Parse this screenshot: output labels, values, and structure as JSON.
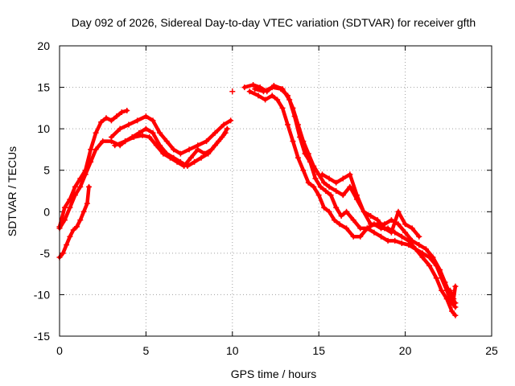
{
  "chart_data": {
    "type": "scatter",
    "title": "Day 092 of 2026, Sidereal Day-to-day VTEC variation (SDTVAR) for receiver gfth",
    "xlabel": "GPS time / hours",
    "ylabel": "SDTVAR / TECUs",
    "xlim": [
      0,
      25
    ],
    "ylim": [
      -15,
      20
    ],
    "xticks": [
      0,
      5,
      10,
      15,
      20,
      25
    ],
    "yticks": [
      -15,
      -10,
      -5,
      0,
      5,
      10,
      15,
      20
    ],
    "xtick_labels": [
      "0",
      "5",
      "10",
      "15",
      "20",
      "25"
    ],
    "ytick_labels": [
      "-15",
      "-10",
      "-5",
      "0",
      "5",
      "10",
      "15",
      "20"
    ],
    "grid": true,
    "marker": "+",
    "color": "#ff0000",
    "series": [
      {
        "name": "track-a",
        "points": [
          [
            0.0,
            -1.8
          ],
          [
            0.3,
            0.5
          ],
          [
            0.6,
            1.5
          ],
          [
            0.9,
            3.0
          ],
          [
            1.2,
            4.0
          ],
          [
            1.5,
            5.0
          ],
          [
            1.8,
            7.5
          ],
          [
            2.1,
            9.5
          ],
          [
            2.4,
            10.8
          ],
          [
            2.7,
            11.3
          ],
          [
            3.0,
            11.0
          ],
          [
            3.3,
            11.5
          ],
          [
            3.6,
            12.0
          ],
          [
            3.9,
            12.2
          ]
        ]
      },
      {
        "name": "track-b",
        "points": [
          [
            0.0,
            -2.0
          ],
          [
            0.3,
            -1.0
          ],
          [
            0.6,
            0.5
          ],
          [
            0.9,
            2.0
          ],
          [
            1.2,
            3.0
          ],
          [
            1.5,
            4.5
          ],
          [
            1.8,
            6.0
          ],
          [
            2.1,
            7.5
          ],
          [
            2.5,
            8.5
          ],
          [
            3.0,
            8.5
          ],
          [
            3.5,
            8.0
          ],
          [
            3.8,
            8.5
          ],
          [
            4.2,
            9.0
          ],
          [
            4.6,
            9.5
          ],
          [
            5.0,
            10.0
          ],
          [
            5.4,
            9.5
          ],
          [
            5.8,
            8.0
          ],
          [
            6.2,
            7.0
          ],
          [
            6.6,
            6.5
          ],
          [
            7.0,
            6.0
          ],
          [
            7.4,
            5.5
          ],
          [
            7.8,
            6.0
          ],
          [
            8.2,
            6.5
          ],
          [
            8.6,
            7.0
          ],
          [
            9.0,
            8.0
          ],
          [
            9.4,
            9.0
          ],
          [
            9.7,
            10.0
          ]
        ]
      },
      {
        "name": "track-c",
        "points": [
          [
            0.0,
            -5.5
          ],
          [
            0.2,
            -5.0
          ],
          [
            0.4,
            -4.0
          ],
          [
            0.6,
            -3.0
          ],
          [
            0.8,
            -2.2
          ],
          [
            1.0,
            -1.8
          ],
          [
            1.2,
            -1.0
          ],
          [
            1.4,
            0.0
          ],
          [
            1.6,
            1.0
          ],
          [
            1.7,
            3.0
          ]
        ]
      },
      {
        "name": "track-d",
        "points": [
          [
            3.0,
            9.0
          ],
          [
            3.5,
            10.0
          ],
          [
            4.0,
            10.5
          ],
          [
            4.5,
            11.0
          ],
          [
            5.0,
            11.5
          ],
          [
            5.4,
            11.0
          ],
          [
            5.8,
            9.5
          ],
          [
            6.2,
            8.5
          ],
          [
            6.6,
            7.5
          ],
          [
            7.0,
            7.0
          ],
          [
            7.5,
            7.5
          ],
          [
            8.0,
            8.0
          ],
          [
            8.5,
            8.5
          ],
          [
            9.0,
            9.5
          ],
          [
            9.5,
            10.5
          ],
          [
            9.9,
            11.0
          ]
        ]
      },
      {
        "name": "track-e",
        "points": [
          [
            3.2,
            8.0
          ],
          [
            3.8,
            8.5
          ],
          [
            4.3,
            9.0
          ],
          [
            4.8,
            9.2
          ],
          [
            5.2,
            9.0
          ],
          [
            5.6,
            8.0
          ],
          [
            6.0,
            7.0
          ],
          [
            6.4,
            6.5
          ],
          [
            6.8,
            6.0
          ],
          [
            7.2,
            5.5
          ],
          [
            7.6,
            6.5
          ],
          [
            8.0,
            7.5
          ],
          [
            8.4,
            7.0
          ],
          [
            8.8,
            7.5
          ],
          [
            9.2,
            8.5
          ],
          [
            9.6,
            9.5
          ]
        ]
      },
      {
        "name": "point-10",
        "points": [
          [
            10.0,
            14.5
          ]
        ]
      },
      {
        "name": "track-f",
        "points": [
          [
            10.7,
            15.0
          ],
          [
            11.2,
            15.3
          ],
          [
            11.6,
            15.0
          ],
          [
            12.0,
            14.5
          ],
          [
            12.4,
            15.2
          ],
          [
            12.9,
            14.8
          ],
          [
            13.3,
            13.5
          ],
          [
            13.6,
            11.5
          ],
          [
            13.9,
            9.0
          ],
          [
            14.2,
            7.0
          ],
          [
            14.5,
            6.0
          ],
          [
            14.8,
            4.0
          ],
          [
            15.1,
            3.0
          ],
          [
            15.4,
            2.5
          ],
          [
            15.7,
            2.0
          ],
          [
            16.0,
            0.5
          ],
          [
            16.3,
            -0.5
          ],
          [
            16.6,
            0.0
          ],
          [
            17.0,
            -1.0
          ],
          [
            17.4,
            -2.0
          ],
          [
            17.8,
            -2.0
          ],
          [
            18.2,
            -1.5
          ],
          [
            18.6,
            -2.0
          ],
          [
            19.0,
            -2.0
          ],
          [
            19.4,
            -2.5
          ],
          [
            19.8,
            -3.0
          ],
          [
            20.2,
            -3.5
          ],
          [
            20.6,
            -4.5
          ],
          [
            21.0,
            -5.0
          ],
          [
            21.4,
            -5.5
          ],
          [
            21.8,
            -6.5
          ],
          [
            22.1,
            -8.0
          ],
          [
            22.4,
            -9.5
          ],
          [
            22.7,
            -11.0
          ],
          [
            22.9,
            -11.5
          ]
        ]
      },
      {
        "name": "track-g",
        "points": [
          [
            11.0,
            14.5
          ],
          [
            11.5,
            14.0
          ],
          [
            11.9,
            13.5
          ],
          [
            12.3,
            14.0
          ],
          [
            12.6,
            13.5
          ],
          [
            12.9,
            12.5
          ],
          [
            13.2,
            10.5
          ],
          [
            13.5,
            8.5
          ],
          [
            13.8,
            6.5
          ],
          [
            14.1,
            5.0
          ],
          [
            14.4,
            3.5
          ],
          [
            14.7,
            3.0
          ],
          [
            15.0,
            2.0
          ],
          [
            15.3,
            0.5
          ],
          [
            15.6,
            0.0
          ],
          [
            15.9,
            -1.0
          ],
          [
            16.2,
            -1.5
          ],
          [
            16.6,
            -2.0
          ],
          [
            17.0,
            -3.0
          ],
          [
            17.4,
            -3.0
          ],
          [
            17.8,
            -2.0
          ],
          [
            18.2,
            -2.5
          ],
          [
            18.6,
            -3.0
          ],
          [
            19.0,
            -3.5
          ],
          [
            19.4,
            -3.5
          ],
          [
            19.8,
            -3.8
          ],
          [
            20.2,
            -4.0
          ],
          [
            20.6,
            -4.5
          ],
          [
            21.0,
            -5.5
          ],
          [
            21.4,
            -6.5
          ],
          [
            21.8,
            -8.0
          ],
          [
            22.1,
            -9.5
          ],
          [
            22.4,
            -10.5
          ],
          [
            22.7,
            -12.0
          ],
          [
            22.9,
            -12.5
          ]
        ]
      },
      {
        "name": "track-h",
        "points": [
          [
            11.3,
            14.8
          ],
          [
            11.8,
            14.5
          ],
          [
            12.3,
            15.0
          ],
          [
            12.8,
            14.8
          ],
          [
            13.2,
            14.0
          ],
          [
            13.5,
            12.5
          ],
          [
            13.8,
            10.5
          ],
          [
            14.1,
            8.5
          ],
          [
            14.4,
            7.0
          ],
          [
            14.7,
            5.5
          ],
          [
            15.0,
            4.5
          ],
          [
            15.3,
            3.5
          ],
          [
            15.6,
            3.0
          ],
          [
            16.0,
            2.5
          ],
          [
            16.4,
            2.0
          ],
          [
            16.8,
            3.0
          ],
          [
            17.2,
            1.5
          ],
          [
            17.6,
            0.0
          ],
          [
            18.0,
            -1.5
          ],
          [
            18.4,
            -1.5
          ],
          [
            18.8,
            -1.5
          ],
          [
            19.2,
            -1.0
          ],
          [
            19.6,
            -1.5
          ],
          [
            20.0,
            -2.5
          ],
          [
            20.4,
            -3.5
          ],
          [
            20.8,
            -4.0
          ],
          [
            21.2,
            -4.5
          ],
          [
            21.6,
            -5.5
          ],
          [
            22.0,
            -7.0
          ],
          [
            22.3,
            -8.5
          ],
          [
            22.6,
            -10.0
          ],
          [
            22.9,
            -11.0
          ]
        ]
      },
      {
        "name": "track-i",
        "points": [
          [
            15.2,
            4.5
          ],
          [
            15.6,
            4.0
          ],
          [
            16.0,
            3.5
          ],
          [
            16.4,
            4.0
          ],
          [
            16.8,
            4.5
          ],
          [
            17.2,
            2.0
          ],
          [
            17.6,
            0.0
          ],
          [
            18.0,
            -0.5
          ],
          [
            18.4,
            -1.0
          ],
          [
            18.8,
            -2.0
          ],
          [
            19.2,
            -2.5
          ],
          [
            19.6,
            0.0
          ],
          [
            20.0,
            -1.5
          ],
          [
            20.4,
            -2.0
          ],
          [
            20.8,
            -3.0
          ]
        ]
      },
      {
        "name": "track-j",
        "points": [
          [
            22.6,
            -9.5
          ],
          [
            22.8,
            -10.5
          ],
          [
            22.9,
            -9.0
          ]
        ]
      }
    ]
  }
}
